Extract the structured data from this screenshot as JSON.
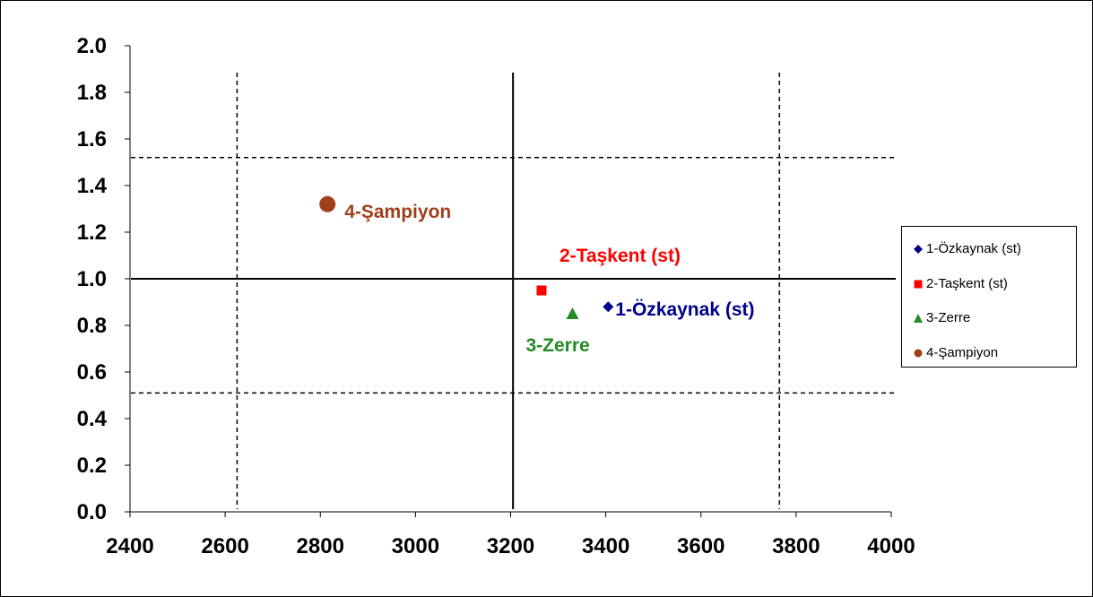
{
  "chart_data": {
    "type": "scatter",
    "title": "",
    "xlabel": "",
    "ylabel": "",
    "xlim": [
      2400,
      4000
    ],
    "ylim": [
      0.0,
      2.0
    ],
    "x_ticks": [
      "2400",
      "2600",
      "2800",
      "3000",
      "3200",
      "3400",
      "3600",
      "3800",
      "4000"
    ],
    "y_ticks": [
      "0.0",
      "0.2",
      "0.4",
      "0.6",
      "0.8",
      "1.0",
      "1.2",
      "1.4",
      "1.6",
      "1.8",
      "2.0"
    ],
    "grid": false,
    "legend_position": "right",
    "series": [
      {
        "name": "1-Özkaynak (st)",
        "marker": "diamond",
        "color": "#00008b",
        "label_color": "#00008b",
        "points": [
          {
            "x": 3405,
            "y": 0.88
          }
        ]
      },
      {
        "name": "2-Taşkent (st)",
        "marker": "square",
        "color": "#ff0000",
        "label_color": "#ff0000",
        "points": [
          {
            "x": 3265,
            "y": 0.95
          }
        ]
      },
      {
        "name": "3-Zerre",
        "marker": "triangle",
        "color": "#228b22",
        "label_color": "#228b22",
        "points": [
          {
            "x": 3330,
            "y": 0.85
          }
        ]
      },
      {
        "name": "4-Şampiyon",
        "marker": "circle",
        "color": "#a0401a",
        "label_color": "#a0401a",
        "points": [
          {
            "x": 2815,
            "y": 1.32
          }
        ]
      }
    ],
    "reference_lines": [
      {
        "orientation": "vertical",
        "value": 3205,
        "style": "solid"
      },
      {
        "orientation": "vertical",
        "value": 2625,
        "style": "dashed"
      },
      {
        "orientation": "vertical",
        "value": 3765,
        "style": "dashed"
      },
      {
        "orientation": "horizontal",
        "value": 1.0,
        "style": "solid"
      },
      {
        "orientation": "horizontal",
        "value": 1.52,
        "style": "dashed"
      },
      {
        "orientation": "horizontal",
        "value": 0.51,
        "style": "dashed"
      }
    ]
  }
}
